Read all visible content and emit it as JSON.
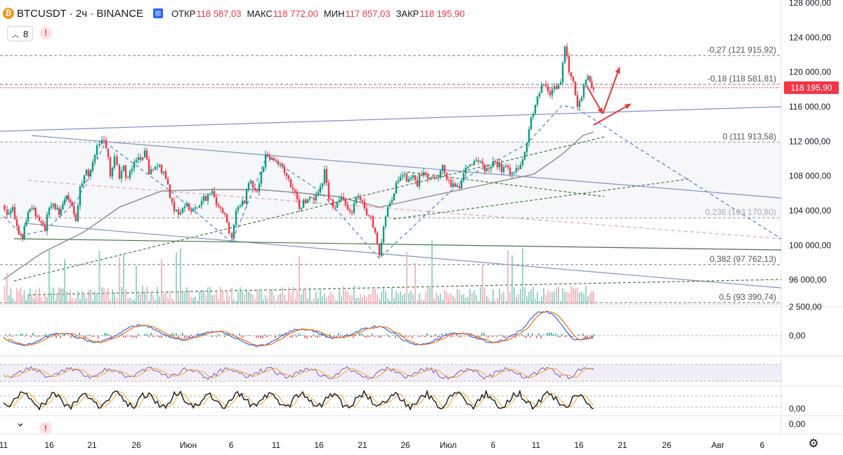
{
  "header": {
    "symbol": "BTCUSDT · 2ч · BINANCE",
    "coin_icon": "bitcoin-icon",
    "open_label": "ОТКР",
    "open_value": "118 587,03",
    "high_label": "МАКС",
    "high_value": "118 772,00",
    "low_label": "МИН",
    "low_value": "117 857,03",
    "close_label": "ЗАКР",
    "close_value": "118 195,90",
    "indicators_count": "8",
    "warning_glyph": "!",
    "pan_glyph": "⌄"
  },
  "colors": {
    "up": "#089981",
    "down": "#f23645",
    "fib_line": "#787b86",
    "channel": "#7e92c8",
    "pattern": "#4a7fd4",
    "arrow": "#e53935",
    "ma": "#8a8a8a",
    "trend_green": "#3e7a3e"
  },
  "chart_data": {
    "type": "candlestick",
    "title": "BTCUSDT · 2ч · BINANCE",
    "x_ticks": [
      "11",
      "16",
      "21",
      "26",
      "Июн",
      "6",
      "11",
      "16",
      "21",
      "26",
      "Июл",
      "6",
      "11",
      "16",
      "21",
      "26",
      "Авг",
      "6"
    ],
    "y_ticks": [
      "128 000,00",
      "124 000,00",
      "120 000,00",
      "116 000,00",
      "112 000,00",
      "108 000,00",
      "104 000,00",
      "100 000,00",
      "96 000,00"
    ],
    "ylim": [
      92000,
      128000
    ],
    "last_price_label": "118 195,90",
    "volume_axis_label": "2 500,00",
    "macd_zero_label": "0,00",
    "stoch_zero_label": "0,00",
    "bottom_zero_label": "0,00",
    "fib_levels": [
      {
        "label": "-0,27 (121 915,92)",
        "value": 121915.92
      },
      {
        "label": "-0,18 (118 581,81)",
        "value": 118581.81
      },
      {
        "label": "0 (111 913,58)",
        "value": 111913.58
      },
      {
        "label": "0,236 (103 170,80)",
        "value": 103170.8
      },
      {
        "label": "0,382 (97 762,13)",
        "value": 97762.13
      },
      {
        "label": "0,5 (93 390,74)",
        "value": 93390.74
      }
    ],
    "price_path": [
      [
        3,
        104600
      ],
      [
        10,
        103500
      ],
      [
        18,
        104800
      ],
      [
        24,
        102000
      ],
      [
        32,
        101000
      ],
      [
        40,
        103800
      ],
      [
        48,
        104200
      ],
      [
        56,
        103000
      ],
      [
        64,
        102000
      ],
      [
        70,
        104300
      ],
      [
        76,
        104800
      ],
      [
        84,
        103800
      ],
      [
        92,
        105500
      ],
      [
        100,
        105000
      ],
      [
        108,
        102500
      ],
      [
        114,
        106500
      ],
      [
        120,
        108500
      ],
      [
        126,
        108000
      ],
      [
        132,
        110000
      ],
      [
        138,
        111200
      ],
      [
        145,
        112000
      ],
      [
        151,
        111600
      ],
      [
        157,
        108000
      ],
      [
        163,
        110400
      ],
      [
        170,
        108000
      ],
      [
        176,
        109000
      ],
      [
        182,
        107500
      ],
      [
        188,
        109300
      ],
      [
        194,
        110200
      ],
      [
        200,
        109800
      ],
      [
        206,
        110500
      ],
      [
        212,
        108500
      ],
      [
        218,
        108700
      ],
      [
        224,
        109100
      ],
      [
        230,
        108700
      ],
      [
        236,
        108000
      ],
      [
        242,
        105800
      ],
      [
        248,
        104300
      ],
      [
        254,
        103300
      ],
      [
        260,
        104500
      ],
      [
        266,
        104700
      ],
      [
        272,
        103800
      ],
      [
        278,
        104500
      ],
      [
        284,
        104400
      ],
      [
        290,
        105600
      ],
      [
        296,
        105500
      ],
      [
        302,
        106200
      ],
      [
        308,
        105100
      ],
      [
        314,
        104600
      ],
      [
        320,
        103400
      ],
      [
        326,
        101700
      ],
      [
        330,
        101000
      ],
      [
        336,
        103800
      ],
      [
        342,
        104800
      ],
      [
        348,
        105200
      ],
      [
        354,
        107400
      ],
      [
        360,
        107000
      ],
      [
        366,
        106300
      ],
      [
        372,
        108400
      ],
      [
        378,
        110400
      ],
      [
        384,
        110200
      ],
      [
        390,
        110000
      ],
      [
        396,
        109600
      ],
      [
        402,
        109000
      ],
      [
        408,
        107900
      ],
      [
        414,
        106800
      ],
      [
        420,
        105800
      ],
      [
        426,
        104300
      ],
      [
        432,
        105000
      ],
      [
        438,
        105500
      ],
      [
        444,
        105200
      ],
      [
        450,
        106000
      ],
      [
        456,
        106400
      ],
      [
        462,
        108500
      ],
      [
        468,
        105600
      ],
      [
        474,
        104200
      ],
      [
        480,
        105400
      ],
      [
        486,
        105600
      ],
      [
        492,
        104300
      ],
      [
        498,
        103700
      ],
      [
        504,
        104600
      ],
      [
        510,
        105800
      ],
      [
        516,
        104600
      ],
      [
        522,
        103500
      ],
      [
        528,
        102900
      ],
      [
        534,
        101400
      ],
      [
        540,
        98500
      ],
      [
        546,
        102500
      ],
      [
        552,
        104500
      ],
      [
        558,
        105500
      ],
      [
        564,
        106800
      ],
      [
        570,
        107600
      ],
      [
        576,
        108100
      ],
      [
        582,
        107300
      ],
      [
        588,
        107800
      ],
      [
        594,
        107200
      ],
      [
        600,
        108300
      ],
      [
        606,
        108100
      ],
      [
        612,
        108000
      ],
      [
        618,
        108200
      ],
      [
        624,
        107900
      ],
      [
        630,
        108800
      ],
      [
        636,
        108000
      ],
      [
        642,
        107200
      ],
      [
        648,
        106500
      ],
      [
        654,
        107000
      ],
      [
        660,
        108500
      ],
      [
        666,
        109500
      ],
      [
        672,
        109500
      ],
      [
        678,
        110000
      ],
      [
        684,
        109400
      ],
      [
        690,
        108500
      ],
      [
        696,
        108800
      ],
      [
        702,
        109500
      ],
      [
        708,
        109400
      ],
      [
        714,
        108700
      ],
      [
        720,
        109000
      ],
      [
        726,
        108400
      ],
      [
        732,
        108700
      ],
      [
        738,
        109100
      ],
      [
        744,
        110000
      ],
      [
        750,
        111800
      ],
      [
        756,
        114600
      ],
      [
        762,
        116000
      ],
      [
        768,
        118000
      ],
      [
        774,
        118400
      ],
      [
        780,
        117600
      ],
      [
        786,
        117900
      ],
      [
        792,
        118200
      ],
      [
        798,
        119000
      ],
      [
        804,
        122800
      ],
      [
        810,
        120300
      ],
      [
        816,
        118800
      ],
      [
        822,
        116200
      ],
      [
        828,
        117500
      ],
      [
        834,
        119400
      ],
      [
        840,
        118900
      ],
      [
        845,
        118200
      ]
    ]
  }
}
